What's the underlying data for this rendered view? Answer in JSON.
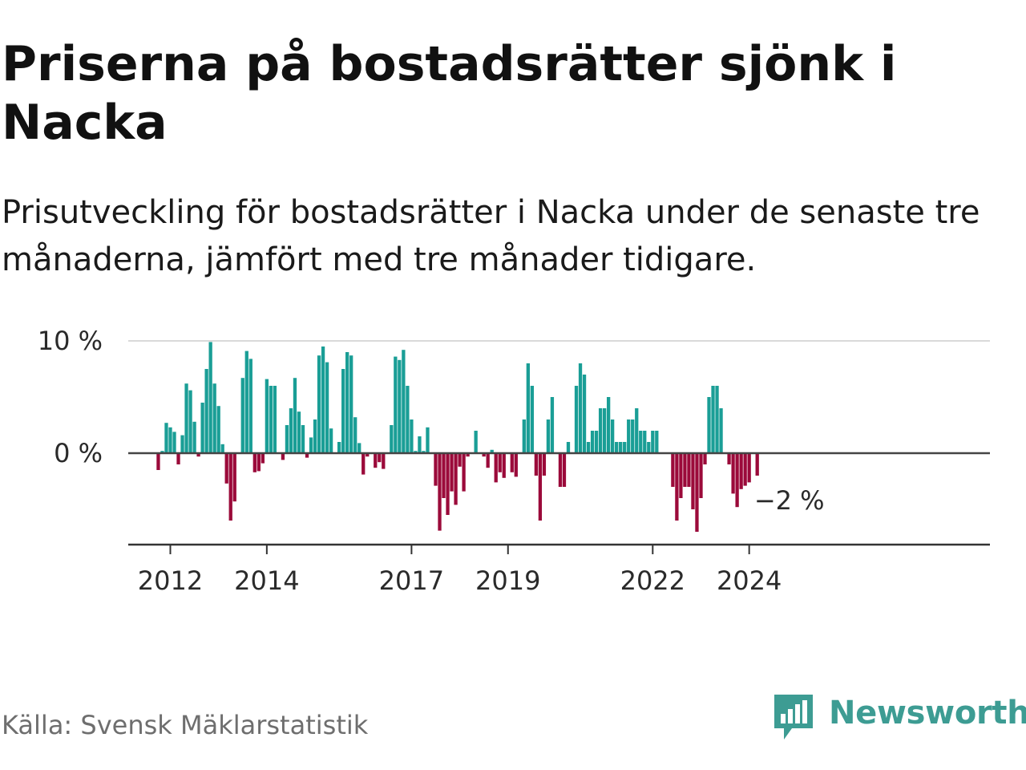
{
  "title": "Priserna på bostadsrätter sjönk i Nacka",
  "subtitle": "Prisutveckling för bostadsrätter i Nacka under de senaste tre månaderna, jämfört med tre månader tidigare.",
  "source": "Källa: Svensk Mäklarstatistik",
  "brand": {
    "name": "Newsworthy",
    "color": "#3d9c93",
    "icon": "newsworthy-logo-icon"
  },
  "colors": {
    "positive": "#1a9e96",
    "negative": "#9b0a3a",
    "zero_line": "#444444",
    "grid": "#d9d9d9"
  },
  "chart_data": {
    "type": "bar",
    "title": "",
    "xlabel": "",
    "ylabel": "",
    "ylim": [
      -8,
      10.5
    ],
    "y_ticks": [
      {
        "value": 10,
        "label": "10 %"
      },
      {
        "value": 0,
        "label": "0 %"
      }
    ],
    "x_ticks": [
      {
        "label": "2012",
        "year": 2012.0
      },
      {
        "label": "2014",
        "year": 2014.0
      },
      {
        "label": "2017",
        "year": 2017.0
      },
      {
        "label": "2019",
        "year": 2019.0
      },
      {
        "label": "2022",
        "year": 2022.0
      },
      {
        "label": "2024",
        "year": 2024.0
      }
    ],
    "start": {
      "year": 2011,
      "month": 10
    },
    "series": [
      {
        "name": "Prisutveckling (%)",
        "values": [
          -1.5,
          0.2,
          2.7,
          2.3,
          1.9,
          -1.0,
          1.6,
          6.2,
          5.6,
          2.8,
          -0.3,
          4.5,
          7.5,
          9.9,
          6.2,
          4.2,
          0.8,
          -2.7,
          -6.0,
          -4.3,
          0,
          6.7,
          9.1,
          8.4,
          -1.7,
          -1.6,
          -0.9,
          6.6,
          6.0,
          6.0,
          0,
          -0.6,
          2.5,
          4.0,
          6.7,
          3.7,
          2.5,
          -0.4,
          1.4,
          3.0,
          8.7,
          9.5,
          8.1,
          2.2,
          0,
          1.0,
          7.5,
          9.0,
          8.7,
          3.2,
          0.9,
          -1.9,
          -0.3,
          0,
          -1.3,
          -0.8,
          -1.4,
          0,
          2.5,
          8.6,
          8.3,
          9.2,
          6.0,
          3.0,
          0.2,
          1.5,
          0.2,
          2.3,
          0,
          -2.9,
          -6.9,
          -4.0,
          -5.5,
          -3.4,
          -4.6,
          -1.2,
          -3.4,
          -0.3,
          0,
          2.0,
          0,
          -0.3,
          -1.3,
          0.3,
          -2.6,
          -1.7,
          -2.2,
          0,
          -1.7,
          -2.1,
          0,
          3.0,
          8.0,
          6.0,
          -2.0,
          -6.0,
          -2.0,
          3.0,
          5.0,
          0,
          -3.0,
          -3.0,
          1.0,
          0,
          6.0,
          8.0,
          7.0,
          1.0,
          2.0,
          2.0,
          4.0,
          4.0,
          5.0,
          3.0,
          1.0,
          1.0,
          1.0,
          3.0,
          3.0,
          4.0,
          2.0,
          2.0,
          1.0,
          2.0,
          2.0,
          0,
          0,
          0,
          -3.0,
          -6.0,
          -4.0,
          -3.0,
          -3.0,
          -5.0,
          -7.0,
          -4.0,
          -1.0,
          5.0,
          6.0,
          6.0,
          4.0,
          0,
          -1.0,
          -3.6,
          -4.8,
          -3.2,
          -2.9,
          -2.6,
          0,
          -2.0
        ]
      }
    ],
    "annotation": {
      "label": "−2 %",
      "value": -2
    }
  }
}
